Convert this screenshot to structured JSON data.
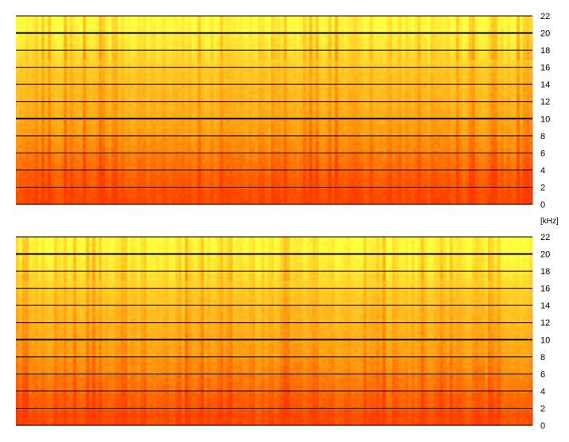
{
  "chart_data": {
    "type": "heatmap",
    "description_unit": "[kHz]",
    "channels": [
      {
        "name": "",
        "y_ticks": [
          22,
          20,
          18,
          16,
          14,
          12,
          10,
          8,
          6,
          4,
          2,
          0
        ],
        "ylim": [
          0,
          22
        ],
        "ylabel": "",
        "major_gridlines_khz": [
          20,
          10
        ],
        "minor_gridlines_khz": [
          22,
          18,
          16,
          14,
          12,
          8,
          6,
          4,
          2,
          0
        ],
        "grid": true,
        "colormap": [
          "#ff3c00",
          "#ff6a00",
          "#ff9a10",
          "#ffc020",
          "#ffe030",
          "#ffff40"
        ],
        "energy_profile_by_band_khz": [
          {
            "band": [
              0,
              2
            ],
            "level": 0.05
          },
          {
            "band": [
              2,
              4
            ],
            "level": 0.12
          },
          {
            "band": [
              4,
              6
            ],
            "level": 0.22
          },
          {
            "band": [
              6,
              8
            ],
            "level": 0.33
          },
          {
            "band": [
              8,
              10
            ],
            "level": 0.42
          },
          {
            "band": [
              10,
              12
            ],
            "level": 0.5
          },
          {
            "band": [
              12,
              14
            ],
            "level": 0.55
          },
          {
            "band": [
              14,
              16
            ],
            "level": 0.6
          },
          {
            "band": [
              16,
              18
            ],
            "level": 0.7
          },
          {
            "band": [
              18,
              20
            ],
            "level": 0.82
          },
          {
            "band": [
              20,
              22
            ],
            "level": 0.95
          }
        ]
      },
      {
        "name": "",
        "y_ticks": [
          22,
          20,
          18,
          16,
          14,
          12,
          10,
          8,
          6,
          4,
          2,
          0
        ],
        "ylim": [
          0,
          22
        ],
        "ylabel": "",
        "major_gridlines_khz": [
          20,
          10
        ],
        "minor_gridlines_khz": [
          22,
          18,
          16,
          14,
          12,
          8,
          6,
          4,
          2,
          0
        ],
        "grid": true,
        "colormap": [
          "#ff3c00",
          "#ff6a00",
          "#ff9a10",
          "#ffc020",
          "#ffe030",
          "#ffff40"
        ],
        "energy_profile_by_band_khz": [
          {
            "band": [
              0,
              2
            ],
            "level": 0.05
          },
          {
            "band": [
              2,
              4
            ],
            "level": 0.14
          },
          {
            "band": [
              4,
              6
            ],
            "level": 0.24
          },
          {
            "band": [
              6,
              8
            ],
            "level": 0.34
          },
          {
            "band": [
              8,
              10
            ],
            "level": 0.43
          },
          {
            "band": [
              10,
              12
            ],
            "level": 0.5
          },
          {
            "band": [
              12,
              14
            ],
            "level": 0.56
          },
          {
            "band": [
              14,
              16
            ],
            "level": 0.62
          },
          {
            "band": [
              16,
              18
            ],
            "level": 0.72
          },
          {
            "band": [
              18,
              20
            ],
            "level": 0.84
          },
          {
            "band": [
              20,
              22
            ],
            "level": 0.96
          }
        ]
      }
    ]
  }
}
